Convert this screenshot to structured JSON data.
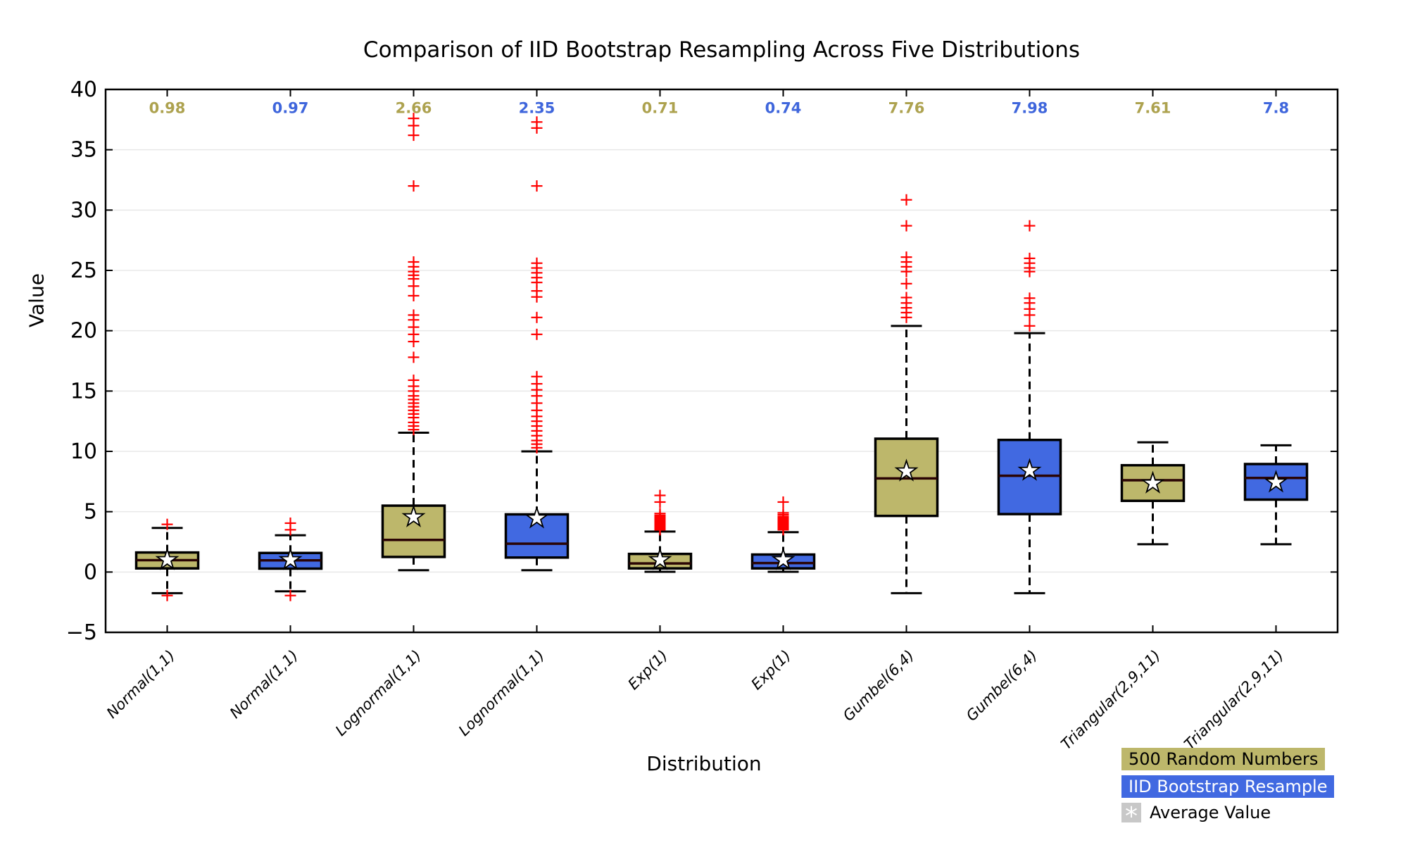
{
  "legend": {
    "series1_label": "500 Random Numbers",
    "series2_label": "IID Bootstrap Resample",
    "mean_symbol": "*",
    "mean_label": "Average Value"
  },
  "colors": {
    "series1": "#BDB76B",
    "series2": "#4169E1",
    "series1_text": "#ada24f",
    "series2_text": "#3f66dc",
    "outlier": "#ff0000",
    "median_line": "#2a0404",
    "grid": "#e8e8e8",
    "axis": "#000000",
    "mean_marker_fill": "#ffffff",
    "legend_mean_swatch": "#c8c8c8"
  },
  "chart_data": {
    "type": "boxplot",
    "title": "Comparison of IID Bootstrap Resampling Across Five Distributions",
    "xlabel": "Distribution",
    "ylabel": "Value",
    "ylim": [
      -5,
      40
    ],
    "yticks": [
      40,
      35,
      30,
      25,
      20,
      15,
      10,
      5,
      0,
      -5
    ],
    "ytick_labels": [
      "40",
      "35",
      "30",
      "25",
      "20",
      "15",
      "10",
      "5",
      "0",
      "−5"
    ],
    "grid": true,
    "legend_position": "bottom-right-outside",
    "series": [
      "500 Random Numbers",
      "IID Bootstrap Resample"
    ],
    "annotation_row_value": 38.5,
    "boxes": [
      {
        "label": "Normal(1,1)",
        "series": 0,
        "median_label": "0.98",
        "mean": 1.0,
        "whislo": -1.75,
        "q1": 0.3,
        "med": 0.98,
        "q3": 1.62,
        "whishi": 3.65,
        "outliers": [
          3.95,
          -1.95
        ]
      },
      {
        "label": "Normal(1,1)",
        "series": 1,
        "median_label": "0.97",
        "mean": 1.0,
        "whislo": -1.6,
        "q1": 0.28,
        "med": 0.97,
        "q3": 1.58,
        "whishi": 3.05,
        "outliers": [
          4.05,
          3.5,
          -1.95
        ]
      },
      {
        "label": "Lognormal(1,1)",
        "series": 0,
        "median_label": "2.66",
        "mean": 4.55,
        "whislo": 0.15,
        "q1": 1.25,
        "med": 2.66,
        "q3": 5.5,
        "whishi": 11.55,
        "outliers": [
          37.6,
          37.0,
          36.2,
          32.0,
          25.7,
          25.3,
          24.9,
          24.6,
          24.3,
          23.7,
          22.9,
          21.3,
          20.9,
          20.3,
          19.7,
          19.1,
          17.8,
          15.9,
          15.4,
          15.0,
          14.6,
          14.3,
          14.0,
          13.7,
          13.4,
          13.1,
          12.8,
          12.4,
          12.1,
          11.8
        ]
      },
      {
        "label": "Lognormal(1,1)",
        "series": 1,
        "median_label": "2.35",
        "mean": 4.45,
        "whislo": 0.15,
        "q1": 1.2,
        "med": 2.35,
        "q3": 4.78,
        "whishi": 10.0,
        "outliers": [
          37.3,
          36.8,
          32.0,
          25.6,
          25.2,
          24.8,
          24.4,
          24.0,
          23.3,
          22.8,
          21.1,
          19.7,
          16.2,
          15.6,
          15.1,
          14.6,
          14.0,
          13.4,
          12.9,
          12.5,
          12.1,
          11.7,
          11.3,
          10.9,
          10.6,
          10.3
        ]
      },
      {
        "label": "Exp(1)",
        "series": 0,
        "median_label": "0.71",
        "mean": 1.0,
        "whislo": 0.02,
        "q1": 0.3,
        "med": 0.71,
        "q3": 1.5,
        "whishi": 3.35,
        "outliers": [
          6.35,
          5.8,
          4.85,
          4.7,
          4.6,
          4.5,
          4.4,
          4.3,
          4.2,
          4.1,
          4.0,
          3.9,
          3.8,
          3.7,
          3.6,
          3.5
        ]
      },
      {
        "label": "Exp(1)",
        "series": 1,
        "median_label": "0.74",
        "mean": 1.0,
        "whislo": 0.02,
        "q1": 0.3,
        "med": 0.74,
        "q3": 1.45,
        "whishi": 3.3,
        "outliers": [
          5.8,
          4.9,
          4.75,
          4.6,
          4.5,
          4.4,
          4.3,
          4.2,
          4.1,
          4.0,
          3.9,
          3.8,
          3.7,
          3.6,
          3.5
        ]
      },
      {
        "label": "Gumbel(6,4)",
        "series": 0,
        "median_label": "7.76",
        "mean": 8.35,
        "whislo": -1.75,
        "q1": 4.65,
        "med": 7.76,
        "q3": 11.05,
        "whishi": 20.4,
        "outliers": [
          30.85,
          28.7,
          26.1,
          25.7,
          25.3,
          24.9,
          23.9,
          22.75,
          22.3,
          21.9,
          21.5,
          21.1
        ]
      },
      {
        "label": "Gumbel(6,4)",
        "series": 1,
        "median_label": "7.98",
        "mean": 8.4,
        "whislo": -1.75,
        "q1": 4.8,
        "med": 7.98,
        "q3": 10.95,
        "whishi": 19.8,
        "outliers": [
          28.7,
          26.0,
          25.6,
          25.2,
          24.9,
          22.7,
          22.3,
          21.8,
          21.3,
          20.4
        ]
      },
      {
        "label": "Triangular(2,9,11)",
        "series": 0,
        "median_label": "7.61",
        "mean": 7.35,
        "whislo": 2.3,
        "q1": 5.9,
        "med": 7.61,
        "q3": 8.85,
        "whishi": 10.75,
        "outliers": []
      },
      {
        "label": "Triangular(2,9,11)",
        "series": 1,
        "median_label": "7.8",
        "mean": 7.43,
        "whislo": 2.3,
        "q1": 6.0,
        "med": 7.8,
        "q3": 8.95,
        "whishi": 10.5,
        "outliers": []
      }
    ]
  }
}
